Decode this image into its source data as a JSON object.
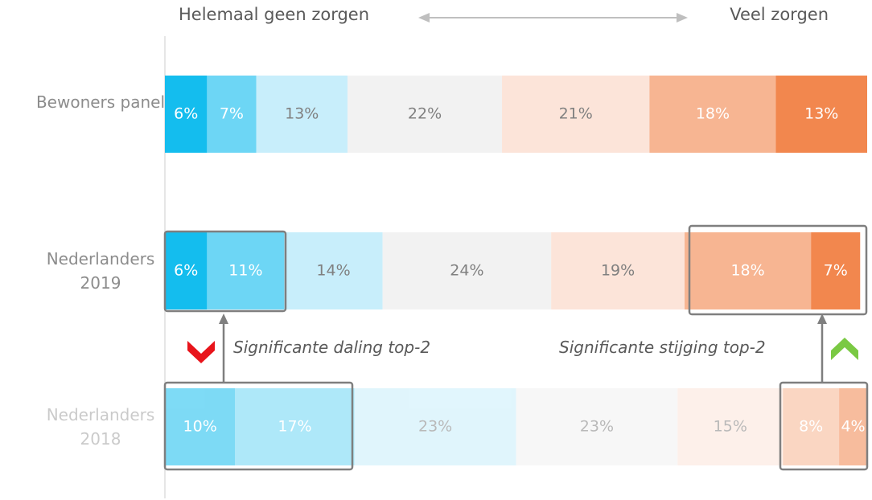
{
  "chart_data": {
    "type": "stacked_bar_horizontal",
    "header_left": "Helemaal geen zorgen",
    "header_right": "Veel zorgen",
    "annotations": [
      "Significante daling top-2",
      "Significante stijging top-2"
    ],
    "categories": [
      "Bewoners panel",
      "Nederlanders 2019",
      "Nederlanders 2018"
    ],
    "xlim": [
      0,
      100
    ],
    "series": [
      {
        "color": "#14bdee",
        "label_color": "#ffffff",
        "values": [
          6,
          6,
          10
        ],
        "value_labels": [
          "6%",
          "6%",
          "10%"
        ]
      },
      {
        "color": "#6dd6f5",
        "label_color": "#ffffff",
        "values": [
          7,
          11,
          17
        ],
        "value_labels": [
          "7%",
          "11%",
          "17%"
        ]
      },
      {
        "color": "#c8eefb",
        "label_color": "#808080",
        "values": [
          13,
          14,
          23
        ],
        "value_labels": [
          "13%",
          "14%",
          "23%"
        ]
      },
      {
        "color": "#f2f2f2",
        "label_color": "#808080",
        "values": [
          22,
          24,
          23
        ],
        "value_labels": [
          "22%",
          "24%",
          "23%"
        ]
      },
      {
        "color": "#fce4d9",
        "label_color": "#808080",
        "values": [
          21,
          19,
          15
        ],
        "value_labels": [
          "21%",
          "19%",
          "15%"
        ]
      },
      {
        "color": "#f7b592",
        "label_color": "#ffffff",
        "values": [
          18,
          18,
          8
        ],
        "value_labels": [
          "18%",
          "18%",
          "8%"
        ]
      },
      {
        "color": "#f2874e",
        "label_color": "#ffffff",
        "values": [
          13,
          7,
          4
        ],
        "value_labels": [
          "13%",
          "7%",
          "4%"
        ]
      }
    ]
  }
}
